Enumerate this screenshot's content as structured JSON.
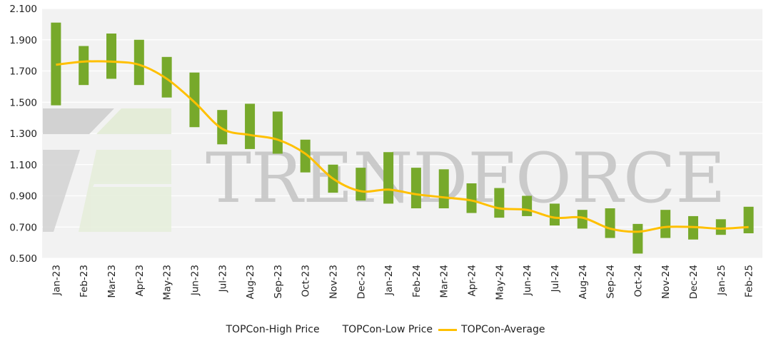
{
  "chart_data": {
    "type": "bar",
    "categories": [
      "Jan-23",
      "Feb-23",
      "Mar-23",
      "Apr-23",
      "May-23",
      "Jun-23",
      "Jul-23",
      "Aug-23",
      "Sep-23",
      "Oct-23",
      "Nov-23",
      "Dec-23",
      "Jan-24",
      "Feb-24",
      "Mar-24",
      "Apr-24",
      "May-24",
      "Jun-24",
      "Jul-24",
      "Aug-24",
      "Sep-24",
      "Oct-24",
      "Nov-24",
      "Dec-24",
      "Jan-25",
      "Feb-25"
    ],
    "series": [
      {
        "name": "TOPCon-High Price",
        "values": [
          2.01,
          1.86,
          1.94,
          1.9,
          1.79,
          1.69,
          1.45,
          1.49,
          1.44,
          1.26,
          1.1,
          1.08,
          1.18,
          1.08,
          1.07,
          0.98,
          0.95,
          0.9,
          0.85,
          0.81,
          0.82,
          0.72,
          0.81,
          0.77,
          0.75,
          0.83
        ]
      },
      {
        "name": "TOPCon-Low Price",
        "values": [
          1.48,
          1.61,
          1.65,
          1.61,
          1.53,
          1.34,
          1.23,
          1.2,
          1.17,
          1.05,
          0.92,
          0.87,
          0.85,
          0.82,
          0.82,
          0.79,
          0.76,
          0.77,
          0.71,
          0.69,
          0.63,
          0.53,
          0.63,
          0.62,
          0.65,
          0.66
        ]
      },
      {
        "name": "TOPCon-Average",
        "values": [
          1.74,
          1.76,
          1.76,
          1.74,
          1.65,
          1.5,
          1.33,
          1.29,
          1.26,
          1.17,
          1.01,
          0.93,
          0.94,
          0.91,
          0.89,
          0.87,
          0.82,
          0.81,
          0.76,
          0.76,
          0.69,
          0.67,
          0.7,
          0.7,
          0.69,
          0.7
        ]
      }
    ],
    "ylim": [
      0.5,
      2.1
    ],
    "yticks": [
      "0.500",
      "0.700",
      "0.900",
      "1.100",
      "1.300",
      "1.500",
      "1.700",
      "1.900",
      "2.100"
    ],
    "grid": true,
    "legend_position": "bottom",
    "colors": {
      "range_bar": "#77A92B",
      "average_line": "#FFC000",
      "plot_bg": "#F2F2F2",
      "grid": "#FFFFFF"
    },
    "watermark": "TRENDFORCE"
  },
  "legend": {
    "high": "TOPCon-High Price",
    "low": "TOPCon-Low Price",
    "avg": "TOPCon-Average"
  }
}
